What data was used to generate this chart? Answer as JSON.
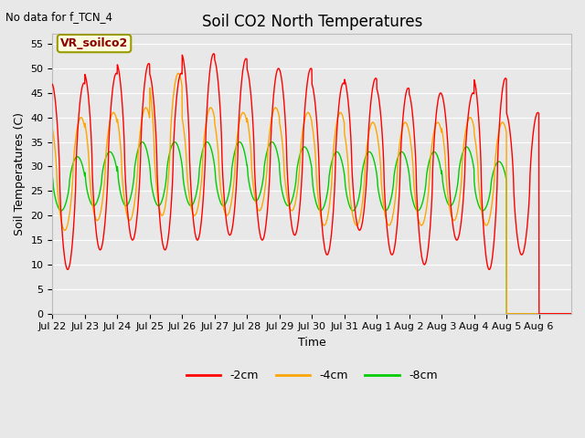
{
  "title": "Soil CO2 North Temperatures",
  "no_data_label": "No data for f_TCN_4",
  "ylabel": "Soil Temperatures (C)",
  "xlabel": "Time",
  "legend_label": "VR_soilco2",
  "ylim": [
    0,
    57
  ],
  "yticks": [
    0,
    5,
    10,
    15,
    20,
    25,
    30,
    35,
    40,
    45,
    50,
    55
  ],
  "background_color": "#e8e8e8",
  "plot_bg_color": "#e8e8e8",
  "line_colors": {
    "-2cm": "#ff0000",
    "-4cm": "#ffa500",
    "-8cm": "#00cc00"
  },
  "x_tick_labels": [
    "Jul 22",
    "Jul 23",
    "Jul 24",
    "Jul 25",
    "Jul 26",
    "Jul 27",
    "Jul 28",
    "Jul 29",
    "Jul 30",
    "Jul 31",
    "Aug 1",
    "Aug 2",
    "Aug 3",
    "Aug 4",
    "Aug 5",
    "Aug 6"
  ],
  "num_days": 16,
  "samples_per_day": 144,
  "red_peaks": [
    47,
    49,
    51,
    49,
    53,
    52,
    50,
    50,
    47,
    48,
    46,
    45,
    45,
    48,
    41
  ],
  "red_troughs": [
    9,
    13,
    15,
    13,
    15,
    16,
    15,
    16,
    12,
    17,
    12,
    10,
    15,
    9,
    12
  ],
  "orange_peaks": [
    40,
    41,
    42,
    49,
    42,
    41,
    42,
    41,
    41,
    39,
    39,
    39,
    40,
    39
  ],
  "orange_troughs": [
    17,
    19,
    19,
    20,
    20,
    20,
    21,
    21,
    18,
    18,
    18,
    18,
    19,
    18
  ],
  "green_peaks": [
    32,
    33,
    35,
    35,
    35,
    35,
    35,
    34,
    33,
    33,
    33,
    33,
    34,
    31
  ],
  "green_troughs": [
    21,
    22,
    22,
    22,
    22,
    22,
    23,
    22,
    21,
    21,
    21,
    21,
    22,
    21
  ],
  "red_phase": 0.72,
  "orange_phase": 0.63,
  "green_phase": 0.52,
  "legend_fontsize": 9,
  "title_fontsize": 12,
  "tick_fontsize": 8,
  "ylabel_fontsize": 9,
  "xlabel_fontsize": 9
}
